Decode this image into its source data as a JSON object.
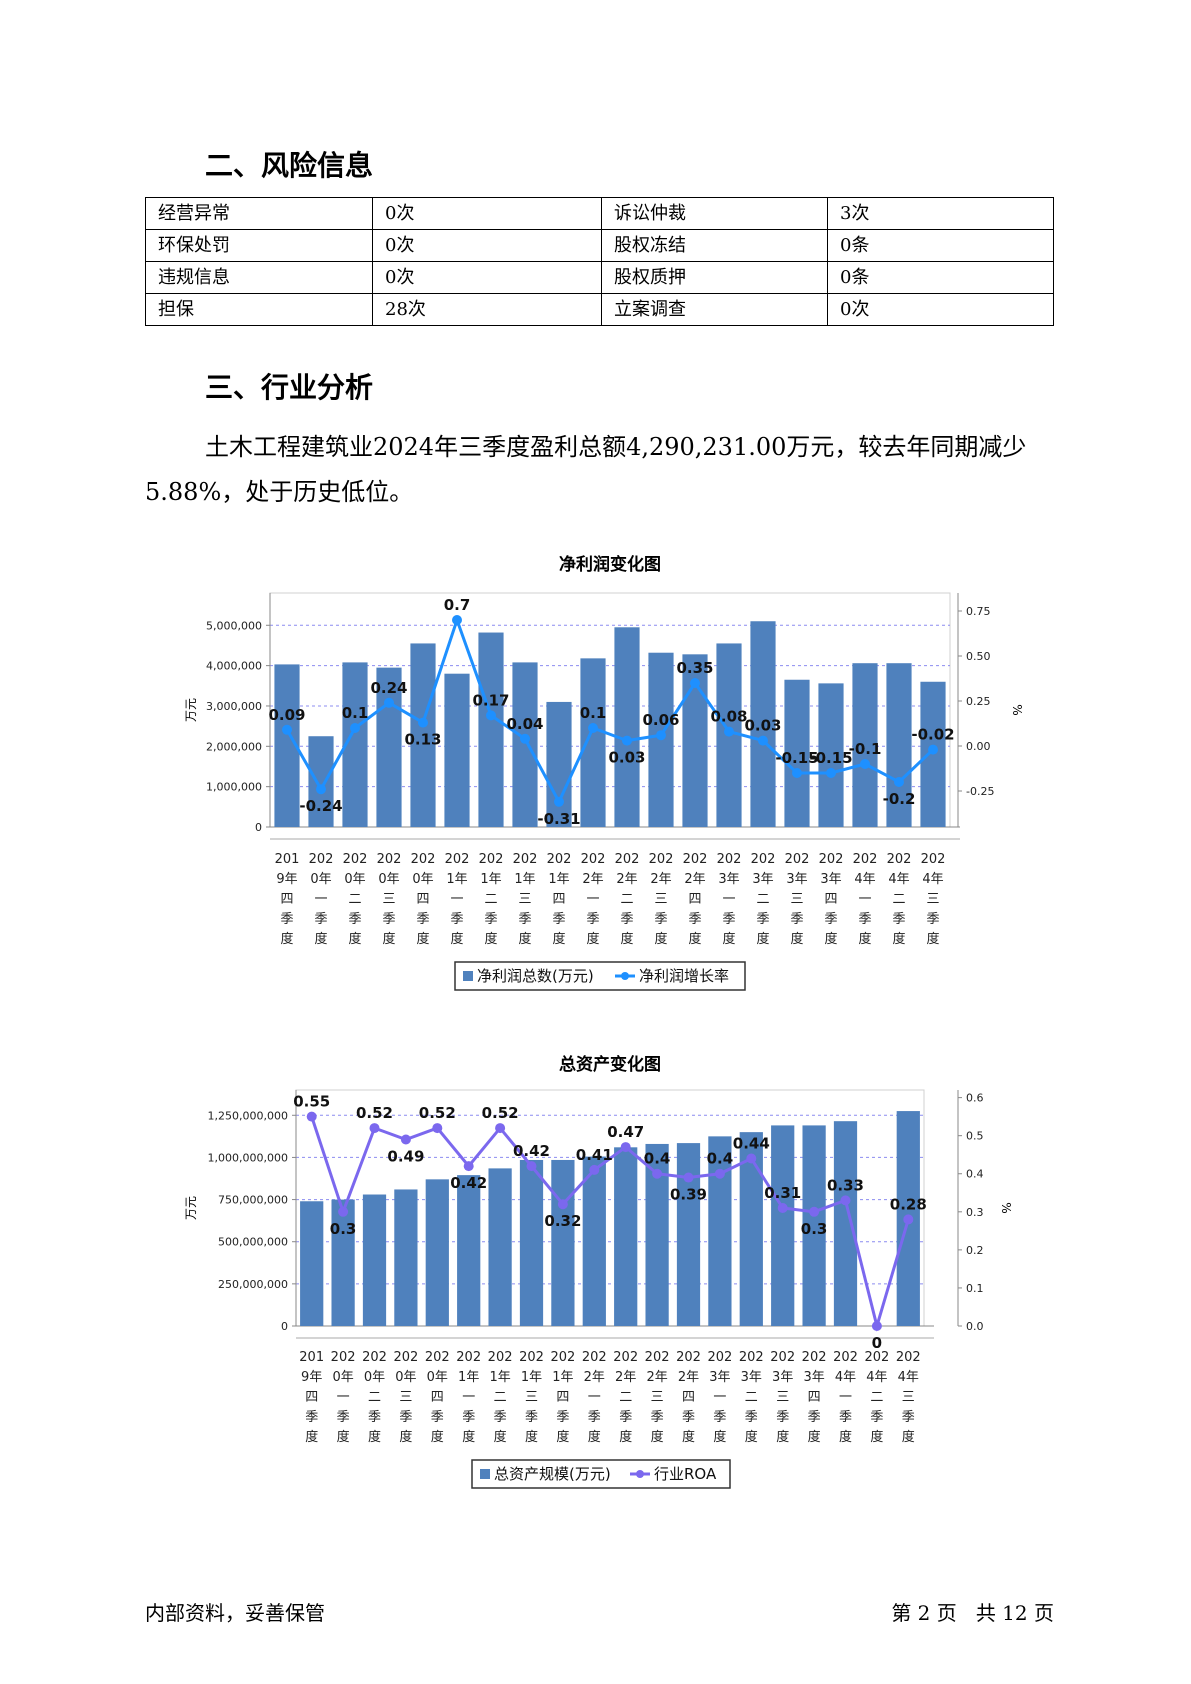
{
  "sections": {
    "risk_title": "二、风险信息",
    "industry_title": "三、行业分析"
  },
  "risk_table": [
    [
      "经营异常",
      "0次",
      "诉讼仲裁",
      "3次"
    ],
    [
      "环保处罚",
      "0次",
      "股权冻结",
      "0条"
    ],
    [
      "违规信息",
      "0次",
      "股权质押",
      "0条"
    ],
    [
      "担保",
      "28次",
      "立案调查",
      "0次"
    ]
  ],
  "industry_paragraph": "土木工程建筑业2024年三季度盈利总额4,290,231.00万元，较去年同期减少5.88%，处于历史低位。",
  "chart_data": [
    {
      "type": "bar",
      "title": "净利润变化图",
      "ylabel": "万元",
      "y2label": "%",
      "ylim": [
        0,
        5800000
      ],
      "y2lim": [
        -0.45,
        0.85
      ],
      "yticks": [
        "0",
        "1,000,000",
        "2,000,000",
        "3,000,000",
        "4,000,000",
        "5,000,000"
      ],
      "y2ticks": [
        "-0.25",
        "0.00",
        "0.25",
        "0.50",
        "0.75"
      ],
      "categories": [
        "2019年四季度",
        "2020年一季度",
        "2020年二季度",
        "2020年三季度",
        "2020年四季度",
        "2021年一季度",
        "2021年二季度",
        "2021年三季度",
        "2021年四季度",
        "2022年一季度",
        "2022年二季度",
        "2022年三季度",
        "2022年四季度",
        "2023年一季度",
        "2023年二季度",
        "2023年三季度",
        "2023年四季度",
        "2024年一季度",
        "2024年二季度",
        "2024年三季度"
      ],
      "series": [
        {
          "name": "净利润总数(万元)",
          "type": "bar",
          "color": "#4f81bd",
          "values": [
            4030000,
            2250000,
            4080000,
            3950000,
            4550000,
            3800000,
            4820000,
            4080000,
            3100000,
            4180000,
            4950000,
            4320000,
            4280000,
            4550000,
            5100000,
            3650000,
            3560000,
            4060000,
            4060000,
            3600000
          ]
        },
        {
          "name": "净利润增长率",
          "type": "line",
          "color": "#1e90ff",
          "values": [
            0.09,
            -0.24,
            0.1,
            0.24,
            0.13,
            0.7,
            0.17,
            0.04,
            -0.31,
            0.1,
            0.03,
            0.06,
            0.35,
            0.08,
            0.03,
            -0.15,
            -0.15,
            -0.1,
            -0.2,
            -0.02
          ],
          "labels": [
            "0.09",
            "-0.24",
            "0.1",
            "0.24",
            "0.13",
            "0.7",
            "0.17",
            "0.04",
            "-0.31",
            "0.1",
            "0.03",
            "0.06",
            "0.35",
            "0.08",
            "0.03",
            "-0.15",
            "-0.15",
            "-0.1",
            "-0.2",
            "-0.02"
          ]
        }
      ],
      "legend": "bottom"
    },
    {
      "type": "bar",
      "title": "总资产变化图",
      "ylabel": "万元",
      "y2label": "%",
      "ylim": [
        0,
        1400000000
      ],
      "y2lim": [
        0,
        0.62
      ],
      "yticks": [
        "0",
        "250,000,000",
        "500,000,000",
        "750,000,000",
        "1,000,000,000",
        "1,250,000,000"
      ],
      "y2ticks": [
        "0.0",
        "0.1",
        "0.2",
        "0.3",
        "0.4",
        "0.5",
        "0.6"
      ],
      "categories": [
        "2019年四季度",
        "2020年一季度",
        "2020年二季度",
        "2020年三季度",
        "2020年四季度",
        "2021年一季度",
        "2021年二季度",
        "2021年三季度",
        "2021年四季度",
        "2022年一季度",
        "2022年二季度",
        "2022年三季度",
        "2022年四季度",
        "2023年一季度",
        "2023年二季度",
        "2023年三季度",
        "2023年四季度",
        "2024年一季度",
        "2024年二季度",
        "2024年三季度"
      ],
      "series": [
        {
          "name": "总资产规模(万元)",
          "type": "bar",
          "color": "#4f81bd",
          "values": [
            740000000,
            750000000,
            780000000,
            810000000,
            870000000,
            895000000,
            935000000,
            985000000,
            985000000,
            1005000000,
            1060000000,
            1080000000,
            1085000000,
            1125000000,
            1150000000,
            1190000000,
            1190000000,
            1215000000,
            null,
            1275000000
          ]
        },
        {
          "name": "行业ROA",
          "type": "line",
          "color": "#7b68ee",
          "values": [
            0.55,
            0.3,
            0.52,
            0.49,
            0.52,
            0.42,
            0.52,
            0.42,
            0.32,
            0.41,
            0.47,
            0.4,
            0.39,
            0.4,
            0.44,
            0.31,
            0.3,
            0.33,
            0,
            0.28
          ],
          "labels": [
            "0.55",
            "0.3",
            "0.52",
            "0.49",
            "0.52",
            "0.42",
            "0.52",
            "0.42",
            "0.32",
            "0.41",
            "0.47",
            "0.4",
            "0.39",
            "0.4",
            "0.44",
            "0.31",
            "0.3",
            "0.33",
            "0",
            "0.28"
          ]
        }
      ],
      "legend": "bottom"
    }
  ],
  "footer": {
    "left": "内部资料，妥善保管",
    "right": "第 2 页   共 12 页"
  }
}
